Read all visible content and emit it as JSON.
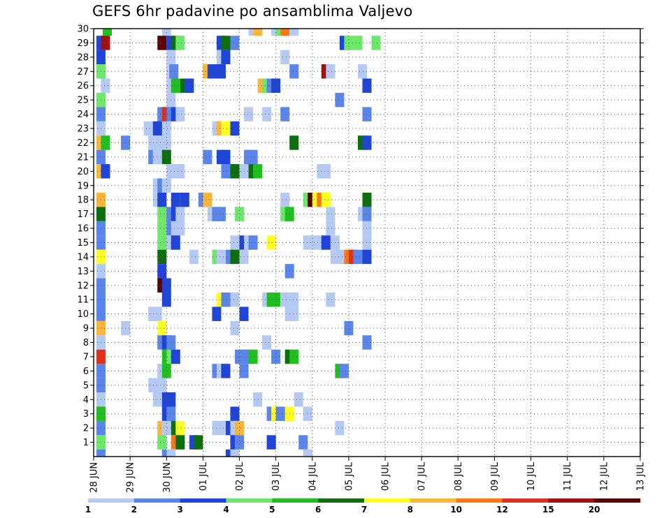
{
  "chart_data": {
    "type": "heatmap",
    "title": "GEFS 6hr padavine po ansamblima Valjevo",
    "xlabel": "",
    "ylabel": "",
    "x_tick_labels": [
      "28 JUN",
      "29 JUN",
      "30 JUN",
      "01 JUL",
      "02 JUL",
      "03 JUL",
      "04 JUL",
      "05 JUL",
      "06 JUL",
      "07 JUL",
      "08 JUL",
      "09 JUL",
      "10 JUL",
      "11 JUL",
      "12 JUL",
      "13 JUL"
    ],
    "y_tick_labels": [
      "1",
      "2",
      "3",
      "4",
      "5",
      "6",
      "7",
      "8",
      "9",
      "10",
      "11",
      "12",
      "13",
      "14",
      "15",
      "16",
      "17",
      "18",
      "19",
      "20",
      "21",
      "22",
      "23",
      "24",
      "25",
      "26",
      "27",
      "28",
      "29",
      "30"
    ],
    "xlim": [
      0,
      60
    ],
    "ylim": [
      0,
      30
    ],
    "grid": true,
    "colorbar": {
      "labels": [
        "1",
        "2",
        "3",
        "4",
        "5",
        "6",
        "7",
        "8",
        "10",
        "12",
        "15",
        "20"
      ],
      "colors": [
        "#b5c9f5",
        "#5a85ea",
        "#1e44d8",
        "#6ee86a",
        "#1fbf1f",
        "#0c6f0c",
        "#ffff22",
        "#ffb43a",
        "#ff7714",
        "#e0301a",
        "#a01010",
        "#5a0000"
      ]
    },
    "cells": [
      [
        30,
        1.5,
        5
      ],
      [
        30,
        8,
        1
      ],
      [
        30,
        17.5,
        1
      ],
      [
        30,
        18,
        8
      ],
      [
        30,
        20,
        1
      ],
      [
        30,
        20.5,
        4
      ],
      [
        30,
        21,
        9
      ],
      [
        30,
        22,
        1
      ],
      [
        29,
        0.8,
        3
      ],
      [
        29,
        1.3,
        11
      ],
      [
        29,
        7.5,
        12
      ],
      [
        29,
        8.5,
        3
      ],
      [
        29,
        9,
        6
      ],
      [
        29,
        9.5,
        4
      ],
      [
        29,
        14,
        3
      ],
      [
        29,
        14.5,
        6
      ],
      [
        29,
        15.5,
        2
      ],
      [
        29,
        27.5,
        3
      ],
      [
        29,
        28,
        4
      ],
      [
        29,
        29,
        4
      ],
      [
        29,
        31,
        4
      ],
      [
        28,
        0.8,
        3
      ],
      [
        28,
        8.5,
        1
      ],
      [
        28,
        14,
        1
      ],
      [
        28,
        14.5,
        3
      ],
      [
        28,
        21,
        1
      ],
      [
        27,
        0.8,
        4
      ],
      [
        27,
        8.5,
        1
      ],
      [
        27,
        8.8,
        2
      ],
      [
        27,
        12.5,
        8
      ],
      [
        27,
        13,
        3
      ],
      [
        27,
        13.5,
        3
      ],
      [
        27,
        14,
        3
      ],
      [
        27,
        22,
        2
      ],
      [
        27,
        25.5,
        11
      ],
      [
        27,
        26,
        1
      ],
      [
        27,
        29.5,
        1
      ],
      [
        26,
        1.3,
        1
      ],
      [
        26,
        8.5,
        1
      ],
      [
        26,
        9,
        5
      ],
      [
        26,
        10,
        6
      ],
      [
        26,
        10.5,
        3
      ],
      [
        26,
        18.5,
        8
      ],
      [
        26,
        19,
        4
      ],
      [
        26,
        19.5,
        2
      ],
      [
        26,
        20,
        3
      ],
      [
        26,
        30,
        3
      ],
      [
        25,
        0.8,
        4
      ],
      [
        25,
        8.5,
        1
      ],
      [
        25,
        27,
        2
      ],
      [
        24,
        0.8,
        2
      ],
      [
        24,
        7.5,
        2
      ],
      [
        24,
        8,
        10
      ],
      [
        24,
        8.5,
        2
      ],
      [
        24,
        9,
        3
      ],
      [
        24,
        9.5,
        1
      ],
      [
        24,
        17,
        1
      ],
      [
        24,
        19,
        1
      ],
      [
        24,
        21,
        2
      ],
      [
        24,
        30,
        2
      ],
      [
        23,
        0.8,
        1
      ],
      [
        23,
        6,
        1
      ],
      [
        23,
        7,
        3
      ],
      [
        23,
        7.5,
        3
      ],
      [
        23,
        8,
        1
      ],
      [
        23,
        13.5,
        1
      ],
      [
        23,
        14,
        8
      ],
      [
        23,
        14.5,
        7
      ],
      [
        23,
        15.5,
        3
      ],
      [
        22,
        0.8,
        8
      ],
      [
        22,
        1.3,
        5
      ],
      [
        22,
        3.5,
        2
      ],
      [
        22,
        6.5,
        1
      ],
      [
        22,
        7,
        1
      ],
      [
        22,
        7.5,
        1
      ],
      [
        22,
        8,
        1
      ],
      [
        22,
        22,
        6
      ],
      [
        22,
        29.5,
        6
      ],
      [
        22,
        30,
        3
      ],
      [
        21,
        0.8,
        2
      ],
      [
        21,
        6.5,
        2
      ],
      [
        21,
        7,
        1
      ],
      [
        21,
        7.5,
        1
      ],
      [
        21,
        8,
        6
      ],
      [
        21,
        12.5,
        2
      ],
      [
        21,
        14,
        3
      ],
      [
        21,
        14.5,
        3
      ],
      [
        21,
        17,
        2
      ],
      [
        21,
        17.5,
        2
      ],
      [
        20,
        0.8,
        8
      ],
      [
        20,
        1.3,
        3
      ],
      [
        20,
        8.5,
        1
      ],
      [
        20,
        9,
        1
      ],
      [
        20,
        9.5,
        1
      ],
      [
        20,
        14.5,
        2
      ],
      [
        20,
        15,
        2
      ],
      [
        20,
        15.5,
        6
      ],
      [
        20,
        16.5,
        1
      ],
      [
        20,
        17.5,
        6
      ],
      [
        20,
        18,
        5
      ],
      [
        20,
        25,
        1
      ],
      [
        20,
        25.5,
        1
      ],
      [
        19,
        7,
        1
      ],
      [
        19,
        7.5,
        2
      ],
      [
        19,
        8,
        1
      ],
      [
        18,
        0.8,
        8
      ],
      [
        18,
        7,
        1
      ],
      [
        18,
        7.5,
        3
      ],
      [
        18,
        9,
        3
      ],
      [
        18,
        10,
        3
      ],
      [
        18,
        12,
        2
      ],
      [
        18,
        12.5,
        8
      ],
      [
        18,
        21,
        1
      ],
      [
        18,
        23.5,
        4
      ],
      [
        18,
        24,
        12
      ],
      [
        18,
        24.5,
        7
      ],
      [
        18,
        25,
        9
      ],
      [
        18,
        25.5,
        7
      ],
      [
        18,
        30,
        6
      ],
      [
        17,
        0.8,
        6
      ],
      [
        17,
        7.5,
        4
      ],
      [
        17,
        8.5,
        2
      ],
      [
        17,
        9,
        3
      ],
      [
        17,
        9.5,
        1
      ],
      [
        17,
        13,
        1
      ],
      [
        17,
        13.5,
        2
      ],
      [
        17,
        14,
        2
      ],
      [
        17,
        16,
        4
      ],
      [
        17,
        21,
        4
      ],
      [
        17,
        21.5,
        5
      ],
      [
        17,
        26,
        1
      ],
      [
        17,
        29.5,
        1
      ],
      [
        17,
        30,
        2
      ],
      [
        16,
        0.8,
        2
      ],
      [
        16,
        7.5,
        4
      ],
      [
        16,
        8.5,
        2
      ],
      [
        16,
        9,
        1
      ],
      [
        16,
        9.5,
        1
      ],
      [
        16,
        26,
        1
      ],
      [
        16,
        30,
        1
      ],
      [
        15,
        0.8,
        2
      ],
      [
        15,
        7.5,
        4
      ],
      [
        15,
        8.5,
        1
      ],
      [
        15,
        9,
        3
      ],
      [
        15,
        15.5,
        1
      ],
      [
        15,
        16.5,
        3
      ],
      [
        15,
        17,
        1
      ],
      [
        15,
        17.5,
        2
      ],
      [
        15,
        19.5,
        7
      ],
      [
        15,
        23.5,
        1
      ],
      [
        15,
        24,
        1
      ],
      [
        15,
        25,
        1
      ],
      [
        15,
        25.5,
        3
      ],
      [
        15,
        26.5,
        1
      ],
      [
        15,
        30,
        1
      ],
      [
        14,
        0.8,
        7
      ],
      [
        14,
        7.5,
        6
      ],
      [
        14,
        11,
        1
      ],
      [
        14,
        13.5,
        4
      ],
      [
        14,
        14,
        1
      ],
      [
        14,
        15,
        2
      ],
      [
        14,
        15.5,
        6
      ],
      [
        14,
        16.5,
        1
      ],
      [
        14,
        26.5,
        1
      ],
      [
        14,
        27,
        1
      ],
      [
        14,
        27.5,
        1
      ],
      [
        14,
        28,
        9
      ],
      [
        14,
        28.5,
        10
      ],
      [
        14,
        29,
        2
      ],
      [
        14,
        30,
        3
      ],
      [
        13,
        0.8,
        1
      ],
      [
        13,
        7.5,
        3
      ],
      [
        13,
        21.5,
        2
      ],
      [
        12,
        0.8,
        2
      ],
      [
        12,
        7.5,
        12
      ],
      [
        12,
        8,
        3
      ],
      [
        11,
        0.8,
        2
      ],
      [
        11,
        8,
        3
      ],
      [
        11,
        14,
        7
      ],
      [
        11,
        14.5,
        2
      ],
      [
        11,
        15.5,
        1
      ],
      [
        11,
        19,
        1
      ],
      [
        11,
        19.5,
        5
      ],
      [
        11,
        20,
        5
      ],
      [
        11,
        21,
        1
      ],
      [
        11,
        22,
        1
      ],
      [
        11,
        26,
        1
      ],
      [
        10,
        0.8,
        2
      ],
      [
        10,
        6.5,
        1
      ],
      [
        10,
        7,
        1
      ],
      [
        10,
        13.5,
        3
      ],
      [
        10,
        16.5,
        3
      ],
      [
        10,
        21.5,
        1
      ],
      [
        10,
        22,
        1
      ],
      [
        9,
        0.8,
        8
      ],
      [
        9,
        3.5,
        1
      ],
      [
        9,
        7.5,
        7
      ],
      [
        9,
        15.5,
        1
      ],
      [
        9,
        28,
        2
      ],
      [
        8,
        0.8,
        1
      ],
      [
        8,
        7.5,
        2
      ],
      [
        8,
        8,
        3
      ],
      [
        8,
        8.5,
        2
      ],
      [
        8,
        19,
        1
      ],
      [
        8,
        30,
        2
      ],
      [
        7,
        0.8,
        10
      ],
      [
        7,
        8,
        5
      ],
      [
        7,
        8.5,
        4
      ],
      [
        7,
        9,
        3
      ],
      [
        7,
        16,
        2
      ],
      [
        7,
        16.5,
        2
      ],
      [
        7,
        17,
        2
      ],
      [
        7,
        17.5,
        5
      ],
      [
        7,
        20,
        2
      ],
      [
        7,
        21.5,
        6
      ],
      [
        7,
        22,
        5
      ],
      [
        6,
        0.8,
        2
      ],
      [
        6,
        7.5,
        1
      ],
      [
        6,
        8,
        5
      ],
      [
        6,
        13.5,
        2
      ],
      [
        6,
        14,
        1
      ],
      [
        6,
        14.5,
        3
      ],
      [
        6,
        16.5,
        2
      ],
      [
        6,
        27,
        5
      ],
      [
        6,
        27.5,
        2
      ],
      [
        5,
        0.8,
        2
      ],
      [
        5,
        6.5,
        1
      ],
      [
        5,
        7,
        1
      ],
      [
        5,
        7.5,
        1
      ],
      [
        4,
        0.8,
        1
      ],
      [
        4,
        7,
        1
      ],
      [
        4,
        8,
        3
      ],
      [
        4,
        8.5,
        3
      ],
      [
        4,
        18,
        1
      ],
      [
        4,
        22.5,
        1
      ],
      [
        3,
        0.8,
        5
      ],
      [
        3,
        8,
        3
      ],
      [
        3,
        8.5,
        2
      ],
      [
        3,
        15.5,
        3
      ],
      [
        3,
        19.5,
        2
      ],
      [
        3,
        20,
        7
      ],
      [
        3,
        20.5,
        2
      ],
      [
        3,
        21,
        2
      ],
      [
        3,
        21.5,
        7
      ],
      [
        3,
        23.5,
        1
      ],
      [
        2,
        0.8,
        2
      ],
      [
        2,
        7.5,
        8
      ],
      [
        2,
        8,
        1
      ],
      [
        2,
        9,
        6
      ],
      [
        2,
        9.5,
        7
      ],
      [
        2,
        13.5,
        1
      ],
      [
        2,
        14.5,
        1
      ],
      [
        2,
        15,
        3
      ],
      [
        2,
        15.5,
        1
      ],
      [
        2,
        16,
        8
      ],
      [
        2,
        27,
        1
      ],
      [
        1,
        0.8,
        4
      ],
      [
        1,
        7.5,
        4
      ],
      [
        1,
        9,
        9
      ],
      [
        1,
        9.5,
        6
      ],
      [
        1,
        11,
        3
      ],
      [
        1,
        11.5,
        6
      ],
      [
        1,
        15.5,
        3
      ],
      [
        1,
        16,
        2
      ],
      [
        1,
        19.5,
        3
      ],
      [
        1,
        23,
        2
      ],
      [
        0,
        0.8,
        2
      ],
      [
        0,
        8,
        2
      ],
      [
        0,
        8.5,
        1
      ],
      [
        0,
        15,
        3
      ],
      [
        0,
        15.5,
        1
      ],
      [
        0,
        23.5,
        1
      ]
    ]
  }
}
